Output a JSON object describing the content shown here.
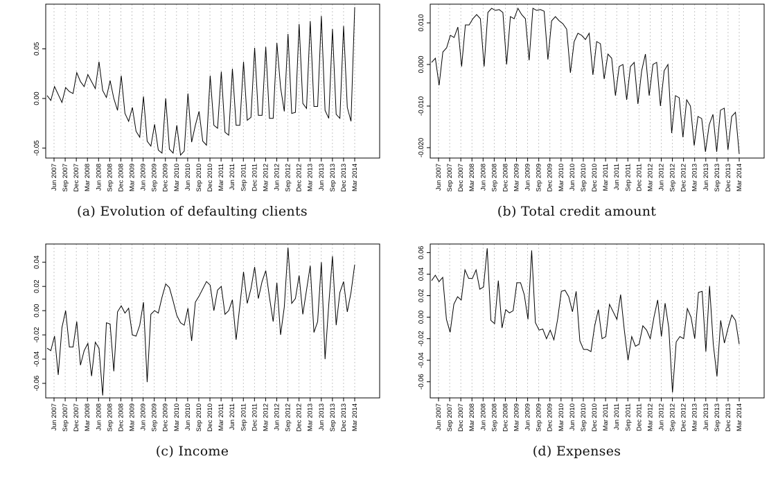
{
  "chart_data": [
    {
      "type": "line",
      "caption": "(a) Evolution of defaulting clients",
      "ylim": [
        -0.06,
        0.095
      ],
      "yticks": [
        -0.05,
        0.0,
        0.05
      ],
      "ytick_labels": [
        "-0.05",
        "0.00",
        "0.05"
      ],
      "xtick_labels": [
        "Jun 2007",
        "Sep 2007",
        "Dec 2007",
        "Mar 2008",
        "Jun 2008",
        "Sep 2008",
        "Dec 2008",
        "Mar 2009",
        "Jun 2009",
        "Sep 2009",
        "Dec 2009",
        "Mar 2010",
        "Jun 2010",
        "Sep 2010",
        "Dec 2010",
        "Mar 2011",
        "Jun 2011",
        "Sep 2011",
        "Dec 2011",
        "Mar 2012",
        "Jun 2012",
        "Sep 2012",
        "Dec 2012",
        "Mar 2013",
        "Jun 2013",
        "Sep 2013",
        "Dec 2013",
        "Mar 2014"
      ],
      "grid": true,
      "series": [
        {
          "values": [
            0.003,
            -0.002,
            0.012,
            0.004,
            -0.004,
            0.011,
            0.007,
            0.005,
            0.026,
            0.017,
            0.012,
            0.024,
            0.017,
            0.01,
            0.037,
            0.008,
            0.001,
            0.018,
            0.0,
            -0.012,
            0.023,
            -0.015,
            -0.023,
            -0.009,
            -0.033,
            -0.039,
            0.002,
            -0.043,
            -0.048,
            -0.026,
            -0.052,
            -0.055,
            0.0,
            -0.051,
            -0.055,
            -0.027,
            -0.057,
            -0.053,
            0.005,
            -0.044,
            -0.027,
            -0.013,
            -0.043,
            -0.047,
            0.023,
            -0.027,
            -0.03,
            0.027,
            -0.034,
            -0.037,
            0.03,
            -0.027,
            -0.027,
            0.037,
            -0.022,
            -0.019,
            0.051,
            -0.017,
            -0.017,
            0.052,
            -0.02,
            -0.02,
            0.056,
            0.011,
            -0.013,
            0.065,
            -0.015,
            -0.014,
            0.075,
            -0.005,
            -0.01,
            0.078,
            -0.008,
            -0.008,
            0.083,
            -0.012,
            -0.02,
            0.07,
            -0.016,
            -0.02,
            0.073,
            -0.009,
            -0.023,
            0.092
          ]
        }
      ]
    },
    {
      "type": "line",
      "caption": "(b) Total credit amount",
      "ylim": [
        -0.0225,
        0.0145
      ],
      "yticks": [
        -0.02,
        -0.01,
        0.0,
        0.01
      ],
      "ytick_labels": [
        "-0.020",
        "-0.010",
        "0.000",
        "0.010"
      ],
      "xtick_labels": [
        "Jun 2007",
        "Sep 2007",
        "Dec 2007",
        "Mar 2008",
        "Jun 2008",
        "Sep 2008",
        "Dec 2008",
        "Mar 2009",
        "Jun 2009",
        "Sep 2009",
        "Dec 2009",
        "Mar 2010",
        "Jun 2010",
        "Sep 2010",
        "Dec 2010",
        "Mar 2011",
        "Jun 2011",
        "Sep 2011",
        "Dec 2011",
        "Mar 2012",
        "Jun 2012",
        "Sep 2012",
        "Dec 2012",
        "Mar 2013",
        "Jun 2013",
        "Sep 2013",
        "Dec 2013",
        "Mar 2014"
      ],
      "grid": true,
      "series": [
        {
          "values": [
            0.0005,
            0.0015,
            -0.005,
            0.003,
            0.004,
            0.007,
            0.0065,
            0.009,
            -0.0005,
            0.0095,
            0.0095,
            0.011,
            0.012,
            0.011,
            -0.0005,
            0.0125,
            0.0135,
            0.013,
            0.0132,
            0.0125,
            0.0,
            0.0115,
            0.011,
            0.0135,
            0.012,
            0.011,
            0.001,
            0.0135,
            0.013,
            0.0132,
            0.0128,
            0.0012,
            0.0105,
            0.0115,
            0.0105,
            0.0098,
            0.0085,
            -0.002,
            0.0055,
            0.0075,
            0.007,
            0.006,
            0.0075,
            -0.0025,
            0.0055,
            0.005,
            -0.0035,
            0.0025,
            0.0015,
            -0.0075,
            -0.0005,
            0.0,
            -0.0085,
            -0.0005,
            0.0005,
            -0.0095,
            -0.0015,
            0.0025,
            -0.0075,
            0.0,
            0.0005,
            -0.01,
            -0.0015,
            0.0,
            -0.0165,
            -0.0075,
            -0.008,
            -0.0175,
            -0.0085,
            -0.01,
            -0.0195,
            -0.0125,
            -0.013,
            -0.021,
            -0.0145,
            -0.012,
            -0.021,
            -0.011,
            -0.0105,
            -0.0205,
            -0.0125,
            -0.0115,
            -0.0215
          ]
        }
      ]
    },
    {
      "type": "line",
      "caption": "(c) Income",
      "ylim": [
        -0.072,
        0.055
      ],
      "yticks": [
        -0.06,
        -0.04,
        -0.02,
        0.0,
        0.02,
        0.04
      ],
      "ytick_labels": [
        "-0.06",
        "-0.04",
        "-0.02",
        "0.00",
        "0.02",
        "0.04"
      ],
      "xtick_labels": [
        "Jun 2007",
        "Sep 2007",
        "Dec 2007",
        "Mar 2008",
        "Jun 2008",
        "Sep 2008",
        "Dec 2008",
        "Mar 2009",
        "Jun 2009",
        "Sep 2009",
        "Dec 2009",
        "Mar 2010",
        "Jun 2010",
        "Sep 2010",
        "Dec 2010",
        "Mar 2011",
        "Jun 2011",
        "Sep 2011",
        "Dec 2011",
        "Mar 2012",
        "Jun 2012",
        "Sep 2012",
        "Dec 2012",
        "Mar 2013",
        "Jun 2013",
        "Sep 2013",
        "Dec 2013",
        "Mar 2014"
      ],
      "grid": true,
      "series": [
        {
          "values": [
            -0.031,
            -0.033,
            -0.021,
            -0.053,
            -0.014,
            0.0,
            -0.03,
            -0.03,
            -0.009,
            -0.045,
            -0.033,
            -0.027,
            -0.054,
            -0.026,
            -0.031,
            -0.07,
            -0.01,
            -0.011,
            -0.05,
            -0.001,
            0.004,
            -0.002,
            0.002,
            -0.02,
            -0.021,
            -0.012,
            0.007,
            -0.059,
            -0.003,
            0.0,
            -0.002,
            0.011,
            0.022,
            0.019,
            0.008,
            -0.004,
            -0.01,
            -0.012,
            0.002,
            -0.025,
            0.007,
            0.012,
            0.018,
            0.024,
            0.021,
            0.0,
            0.017,
            0.02,
            -0.003,
            0.0,
            0.009,
            -0.024,
            0.004,
            0.032,
            0.006,
            0.018,
            0.036,
            0.01,
            0.024,
            0.033,
            0.011,
            -0.009,
            0.023,
            -0.02,
            0.003,
            0.052,
            0.006,
            0.01,
            0.029,
            -0.003,
            0.017,
            0.037,
            -0.018,
            -0.009,
            0.04,
            -0.04,
            0.005,
            0.045,
            -0.012,
            0.015,
            0.024,
            -0.001,
            0.015,
            0.038
          ]
        }
      ]
    },
    {
      "type": "line",
      "caption": "(d) Expenses",
      "ylim": [
        -0.075,
        0.068
      ],
      "yticks": [
        -0.06,
        -0.04,
        -0.02,
        0.0,
        0.02,
        0.04,
        0.06
      ],
      "ytick_labels": [
        "-0.06",
        "-0.04",
        "-0.02",
        "0.00",
        "0.02",
        "0.04",
        "0.06"
      ],
      "xtick_labels": [
        "Jun 2007",
        "Sep 2007",
        "Dec 2007",
        "Mar 2008",
        "Jun 2008",
        "Sep 2008",
        "Dec 2008",
        "Mar 2009",
        "Jun 2009",
        "Sep 2009",
        "Dec 2009",
        "Mar 2010",
        "Jun 2010",
        "Sep 2010",
        "Dec 2010",
        "Mar 2011",
        "Jun 2011",
        "Sep 2011",
        "Dec 2011",
        "Mar 2012",
        "Jun 2012",
        "Sep 2012",
        "Dec 2012",
        "Mar 2013",
        "Jun 2013",
        "Sep 2013",
        "Dec 2013",
        "Mar 2014"
      ],
      "grid": true,
      "series": [
        {
          "values": [
            0.034,
            0.039,
            0.033,
            0.037,
            -0.002,
            -0.014,
            0.012,
            0.019,
            0.016,
            0.044,
            0.036,
            0.036,
            0.044,
            0.026,
            0.028,
            0.064,
            -0.003,
            -0.006,
            0.034,
            -0.01,
            0.007,
            0.004,
            0.006,
            0.032,
            0.032,
            0.021,
            -0.002,
            0.062,
            -0.005,
            -0.012,
            -0.011,
            -0.02,
            -0.012,
            -0.021,
            -0.002,
            0.024,
            0.025,
            0.019,
            0.005,
            0.024,
            -0.022,
            -0.03,
            -0.03,
            -0.032,
            -0.008,
            0.007,
            -0.02,
            -0.018,
            0.012,
            0.005,
            -0.002,
            0.021,
            -0.012,
            -0.04,
            -0.018,
            -0.027,
            -0.025,
            -0.008,
            -0.012,
            -0.02,
            0.0,
            0.016,
            -0.018,
            0.013,
            -0.01,
            -0.07,
            -0.023,
            -0.018,
            -0.02,
            0.008,
            0.0,
            -0.02,
            0.023,
            0.024,
            -0.032,
            0.029,
            -0.025,
            -0.055,
            -0.003,
            -0.024,
            -0.01,
            0.002,
            -0.003,
            -0.025
          ]
        }
      ]
    }
  ]
}
